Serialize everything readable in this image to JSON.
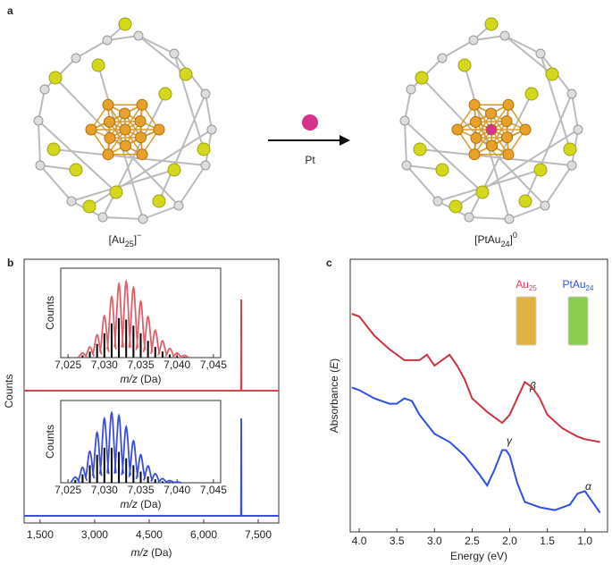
{
  "panel_a": {
    "label": "a",
    "labels": [
      [
        "[Au",
        "25",
        "]",
        "−"
      ],
      [
        "[PtAu",
        "24",
        "]",
        "0"
      ]
    ],
    "reagent": "Pt"
  },
  "chart_data": [
    {
      "type": "spectrum",
      "panel": "b",
      "xlabel": [
        "m/z",
        " (Da)"
      ],
      "ylabel": "Counts",
      "x": [
        1060,
        7028,
        7033,
        7038,
        8065
      ],
      "xlim": [
        1060,
        8065
      ],
      "xticks": [
        {
          "value": 1500,
          "label": "1,500"
        },
        {
          "value": 3000,
          "label": "3,000"
        },
        {
          "value": 4500,
          "label": "4,500"
        },
        {
          "value": 6000,
          "label": "6,000"
        },
        {
          "value": 7500,
          "label": "7,500"
        }
      ],
      "ylim": [
        0,
        100
      ],
      "series": [
        {
          "color": "#d9434f",
          "values": [
            0,
            0,
            100,
            0,
            0
          ]
        },
        {
          "color": "#3a4fe0",
          "values": [
            0,
            0,
            100,
            0,
            0
          ]
        }
      ]
    },
    {
      "type": "isotope",
      "xlabel": [
        "m/z",
        " (Da)"
      ],
      "ylabel": "Counts",
      "x": [
        7027,
        7028,
        7029,
        7030,
        7031,
        7032,
        7033,
        7034,
        7035,
        7036,
        7037,
        7038,
        7039,
        7040,
        7041
      ],
      "xlim": [
        7024,
        7046
      ],
      "xticks": [
        {
          "value": 7025,
          "label": "7,025"
        },
        {
          "value": 7030,
          "label": "7,030"
        },
        {
          "value": 7035,
          "label": "7,035"
        },
        {
          "value": 7040,
          "label": "7,040"
        },
        {
          "value": 7045,
          "label": "7,045"
        }
      ],
      "ylim": [
        0,
        100
      ],
      "series": [
        {
          "color": "#e0606a",
          "style": "envelope",
          "values": [
            6,
            14,
            30,
            55,
            80,
            97,
            100,
            92,
            74,
            54,
            36,
            22,
            12,
            6,
            3
          ]
        },
        {
          "color": "#000000",
          "style": "stick",
          "values": [
            3,
            8,
            18,
            32,
            45,
            52,
            50,
            42,
            32,
            22,
            14,
            8,
            4,
            2,
            1
          ]
        }
      ]
    },
    {
      "type": "isotope",
      "xlabel": [
        "m/z",
        " (Da)"
      ],
      "ylabel": "Counts",
      "x": [
        7026,
        7027,
        7028,
        7029,
        7030,
        7031,
        7032,
        7033,
        7034,
        7035,
        7036,
        7037,
        7038,
        7039,
        7040
      ],
      "xlim": [
        7024,
        7046
      ],
      "xticks": [
        {
          "value": 7025,
          "label": "7,025"
        },
        {
          "value": 7030,
          "label": "7,030"
        },
        {
          "value": 7035,
          "label": "7,035"
        },
        {
          "value": 7040,
          "label": "7,040"
        },
        {
          "value": 7045,
          "label": "7,045"
        }
      ],
      "ylim": [
        0,
        100
      ],
      "series": [
        {
          "color": "#3a4fe0",
          "style": "envelope",
          "values": [
            8,
            22,
            45,
            72,
            92,
            100,
            96,
            80,
            60,
            40,
            24,
            13,
            6,
            3,
            1
          ]
        },
        {
          "color": "#000000",
          "style": "stick",
          "values": [
            4,
            12,
            25,
            40,
            50,
            50,
            44,
            35,
            25,
            16,
            9,
            5,
            2,
            1,
            0
          ]
        }
      ]
    },
    {
      "type": "line",
      "panel": "c",
      "xlabel": "Energy (eV)",
      "ylabel": [
        "Absorbance (",
        "E",
        ")"
      ],
      "xlim": [
        4.12,
        0.7
      ],
      "xticks": [
        {
          "value": 4,
          "label": "4.0"
        },
        3.5,
        {
          "value": 3,
          "label": "3.0"
        },
        2.5,
        {
          "value": 2,
          "label": "2.0"
        },
        1.5,
        {
          "value": 1,
          "label": "1.0"
        }
      ],
      "ylim": [
        0,
        100
      ],
      "legend": [
        [
          "Au",
          "25"
        ],
        [
          "PtAu",
          "24"
        ]
      ],
      "annotations": [
        "β",
        "γ",
        "α"
      ],
      "series": [
        {
          "color": "#cc3340",
          "x": [
            4.1,
            4.0,
            3.8,
            3.6,
            3.4,
            3.2,
            3.1,
            3.0,
            2.9,
            2.8,
            2.7,
            2.6,
            2.5,
            2.3,
            2.1,
            2.0,
            1.9,
            1.8,
            1.7,
            1.6,
            1.5,
            1.3,
            1.1,
            1.0,
            0.8
          ],
          "values": [
            80,
            79,
            72,
            67,
            63,
            63,
            65,
            61,
            63,
            65,
            61,
            56,
            49,
            44,
            40,
            43,
            49,
            55,
            53,
            49,
            43,
            38,
            35,
            34,
            33
          ]
        },
        {
          "color": "#2f4fe8",
          "x": [
            4.1,
            4.0,
            3.8,
            3.6,
            3.5,
            3.4,
            3.3,
            3.2,
            3.0,
            2.8,
            2.6,
            2.4,
            2.3,
            2.2,
            2.1,
            2.05,
            2.0,
            1.9,
            1.8,
            1.6,
            1.4,
            1.2,
            1.1,
            1.0,
            0.9,
            0.8
          ],
          "values": [
            53,
            52,
            49,
            47,
            47,
            49,
            48,
            43,
            36,
            33,
            28,
            21,
            17,
            23,
            30,
            30,
            28,
            18,
            11,
            9,
            8,
            10,
            14,
            15,
            11,
            7
          ]
        }
      ]
    }
  ]
}
